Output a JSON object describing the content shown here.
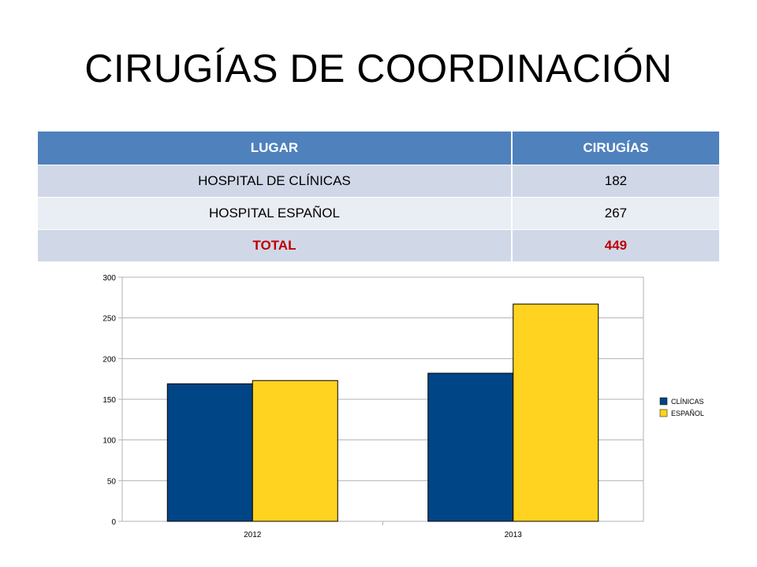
{
  "slide": {
    "title": "CIRUGÍAS DE COORDINACIÓN"
  },
  "table": {
    "headers": [
      "LUGAR",
      "CIRUGÍAS"
    ],
    "rows": [
      [
        "HOSPITAL DE CLÍNICAS",
        "182"
      ],
      [
        "HOSPITAL ESPAÑOL",
        "267"
      ]
    ],
    "total": [
      "TOTAL",
      "449"
    ]
  },
  "chart_data": {
    "type": "bar",
    "categories": [
      "2012",
      "2013"
    ],
    "series": [
      {
        "name": "CLÍNICAS",
        "values": [
          169,
          182
        ],
        "color": "#004586"
      },
      {
        "name": "ESPAÑOL",
        "values": [
          173,
          267
        ],
        "color": "#ffd320"
      }
    ],
    "ylim": [
      0,
      300
    ],
    "yticks": [
      0,
      50,
      100,
      150,
      200,
      250,
      300
    ],
    "grid": true,
    "legend": "right",
    "title": "",
    "xlabel": "",
    "ylabel": ""
  }
}
